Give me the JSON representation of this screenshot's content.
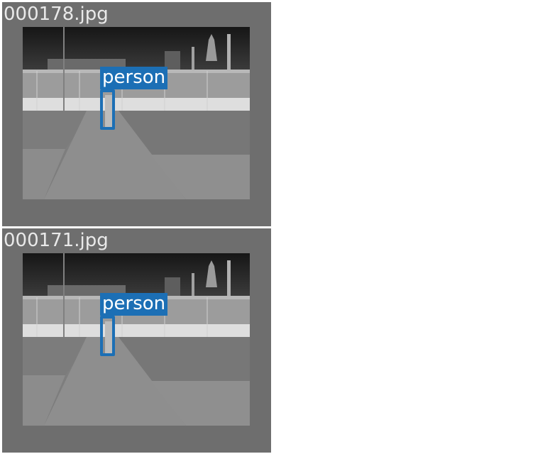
{
  "detections_view": {
    "images": [
      {
        "filename": "000178.jpg",
        "detections": [
          {
            "label": "person",
            "color": "#1c6fb5"
          }
        ]
      },
      {
        "filename": "000171.jpg",
        "detections": [
          {
            "label": "person",
            "color": "#1c6fb5"
          }
        ]
      }
    ]
  }
}
